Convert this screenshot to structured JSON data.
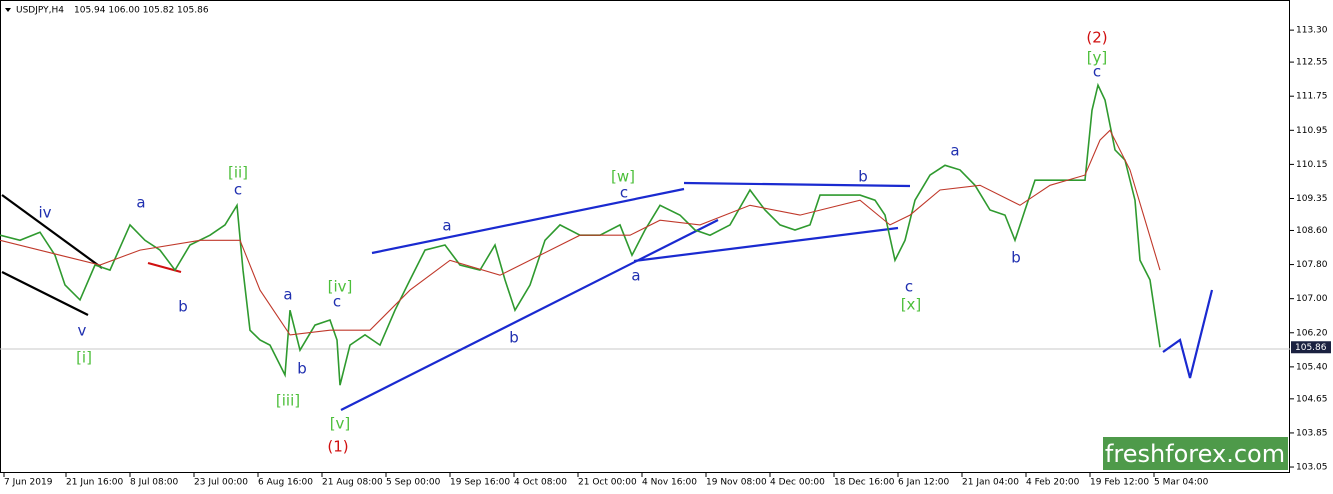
{
  "chart_data": {
    "type": "line",
    "symbol": "USDJPY,H4",
    "ohlc_text": "105.94 106.00 105.82 105.86",
    "watermark": "freshforex.com",
    "current_price": 105.86,
    "xlim": [
      0,
      1290
    ],
    "ylim": [
      102.91,
      113.96
    ],
    "xticks": [
      {
        "value": 4,
        "label": "7 Jun 2019"
      },
      {
        "value": 66,
        "label": "21 Jun 16:00"
      },
      {
        "value": 130,
        "label": "8 Jul 08:00"
      },
      {
        "value": 194,
        "label": "23 Jul 00:00"
      },
      {
        "value": 258,
        "label": "6 Aug 16:00"
      },
      {
        "value": 322,
        "label": "21 Aug 08:00"
      },
      {
        "value": 386,
        "label": "5 Sep 00:00"
      },
      {
        "value": 450,
        "label": "19 Sep 16:00"
      },
      {
        "value": 514,
        "label": "4 Oct 08:00"
      },
      {
        "value": 578,
        "label": "21 Oct 00:00"
      },
      {
        "value": 642,
        "label": "4 Nov 16:00"
      },
      {
        "value": 706,
        "label": "19 Nov 08:00"
      },
      {
        "value": 770,
        "label": "4 Dec 00:00"
      },
      {
        "value": 834,
        "label": "18 Dec 16:00"
      },
      {
        "value": 898,
        "label": "6 Jan 12:00"
      },
      {
        "value": 962,
        "label": "21 Jan 04:00"
      },
      {
        "value": 1026,
        "label": "4 Feb 20:00"
      },
      {
        "value": 1090,
        "label": "19 Feb 12:00"
      },
      {
        "value": 1154,
        "label": "5 Mar 04:00"
      }
    ],
    "yticks": [
      {
        "value": 113.3,
        "label": "113.30"
      },
      {
        "value": 112.55,
        "label": "112.55"
      },
      {
        "value": 111.75,
        "label": "111.75"
      },
      {
        "value": 110.95,
        "label": "110.95"
      },
      {
        "value": 110.15,
        "label": "110.15"
      },
      {
        "value": 109.35,
        "label": "109.35"
      },
      {
        "value": 108.6,
        "label": "108.60"
      },
      {
        "value": 107.8,
        "label": "107.80"
      },
      {
        "value": 107,
        "label": "107.00"
      },
      {
        "value": 106.2,
        "label": "106.20"
      },
      {
        "value": 105.4,
        "label": "105.40"
      },
      {
        "value": 104.65,
        "label": "104.65"
      },
      {
        "value": 103.85,
        "label": "103.85"
      },
      {
        "value": 103.05,
        "label": "103.05"
      }
    ],
    "series": [
      {
        "color": "#2f9a2f",
        "x": [
          0,
          20,
          40,
          55,
          65,
          80,
          95,
          110,
          130,
          145,
          160,
          175,
          190,
          210,
          225,
          237,
          243,
          250,
          260,
          270,
          285,
          290,
          300,
          315,
          330,
          337,
          340,
          350,
          365,
          380,
          395,
          410,
          425,
          445,
          460,
          480,
          495,
          505,
          515,
          530,
          545,
          560,
          580,
          600,
          620,
          632,
          645,
          660,
          680,
          695,
          710,
          730,
          750,
          765,
          780,
          795,
          810,
          820,
          840,
          860,
          875,
          885,
          895,
          905,
          915,
          930,
          945,
          960,
          975,
          990,
          1005,
          1015,
          1025,
          1035,
          1050,
          1070,
          1085,
          1092,
          1098,
          1105,
          1115,
          1125,
          1135,
          1140,
          1150,
          1160
        ],
        "values": [
          108.49,
          108.37,
          108.56,
          108.02,
          107.32,
          106.97,
          107.79,
          107.67,
          108.73,
          108.37,
          108.14,
          107.67,
          108.26,
          108.49,
          108.73,
          109.19,
          107.67,
          106.26,
          106.03,
          105.91,
          105.21,
          106.73,
          105.79,
          106.38,
          106.5,
          106.03,
          104.97,
          105.91,
          106.15,
          105.91,
          106.73,
          107.44,
          108.14,
          108.26,
          107.79,
          107.67,
          108.26,
          107.44,
          106.73,
          107.32,
          108.37,
          108.73,
          108.49,
          108.49,
          108.73,
          108.02,
          108.61,
          109.19,
          108.96,
          108.61,
          108.49,
          108.73,
          109.55,
          109.08,
          108.73,
          108.61,
          108.73,
          109.43,
          109.43,
          109.43,
          109.31,
          108.96,
          107.9,
          108.37,
          109.31,
          109.9,
          110.13,
          110.02,
          109.66,
          109.08,
          108.96,
          108.37,
          109.08,
          109.78,
          109.78,
          109.78,
          109.78,
          111.42,
          112.01,
          111.66,
          110.49,
          110.25,
          109.31,
          107.9,
          107.44,
          105.86
        ]
      },
      {
        "color": "#c0392b",
        "x": [
          0,
          60,
          100,
          140,
          200,
          240,
          260,
          290,
          330,
          370,
          410,
          450,
          500,
          540,
          580,
          630,
          660,
          700,
          750,
          800,
          860,
          890,
          910,
          940,
          980,
          1020,
          1050,
          1085,
          1100,
          1110,
          1130,
          1160
        ],
        "values": [
          108.37,
          108.02,
          107.79,
          108.14,
          108.37,
          108.37,
          107.2,
          106.15,
          106.26,
          106.26,
          107.2,
          107.9,
          107.55,
          108.02,
          108.49,
          108.49,
          108.84,
          108.73,
          109.19,
          108.96,
          109.31,
          108.73,
          108.96,
          109.55,
          109.66,
          109.19,
          109.66,
          109.9,
          110.72,
          110.95,
          110.02,
          107.67
        ]
      }
    ],
    "wave_labels": [
      {
        "text": "iv",
        "color": "#1f2fb0"
      },
      {
        "text": "v",
        "color": "#1f2fb0"
      },
      {
        "text": "[i]",
        "color": "#4cbf3a"
      },
      {
        "text": "a",
        "color": "#1f2fb0"
      },
      {
        "text": "b",
        "color": "#1f2fb0"
      },
      {
        "text": "[ii]",
        "color": "#4cbf3a"
      },
      {
        "text": "c",
        "color": "#1f2fb0"
      },
      {
        "text": "a",
        "color": "#1f2fb0"
      },
      {
        "text": "b",
        "color": "#1f2fb0"
      },
      {
        "text": "[iii]",
        "color": "#4cbf3a"
      },
      {
        "text": "[iv]",
        "color": "#4cbf3a"
      },
      {
        "text": "c",
        "color": "#1f2fb0"
      },
      {
        "text": "[v]",
        "color": "#4cbf3a"
      },
      {
        "text": "(1)",
        "color": "#d01010"
      },
      {
        "text": "a",
        "color": "#1f2fb0"
      },
      {
        "text": "b",
        "color": "#1f2fb0"
      },
      {
        "text": "[w]",
        "color": "#4cbf3a"
      },
      {
        "text": "c",
        "color": "#1f2fb0"
      },
      {
        "text": "a",
        "color": "#1f2fb0"
      },
      {
        "text": "b",
        "color": "#1f2fb0"
      },
      {
        "text": "c",
        "color": "#1f2fb0"
      },
      {
        "text": "[x]",
        "color": "#4cbf3a"
      },
      {
        "text": "a",
        "color": "#1f2fb0"
      },
      {
        "text": "b",
        "color": "#1f2fb0"
      },
      {
        "text": "(2)",
        "color": "#d01010"
      },
      {
        "text": "[y]",
        "color": "#4cbf3a"
      },
      {
        "text": "c",
        "color": "#1f2fb0"
      }
    ]
  }
}
